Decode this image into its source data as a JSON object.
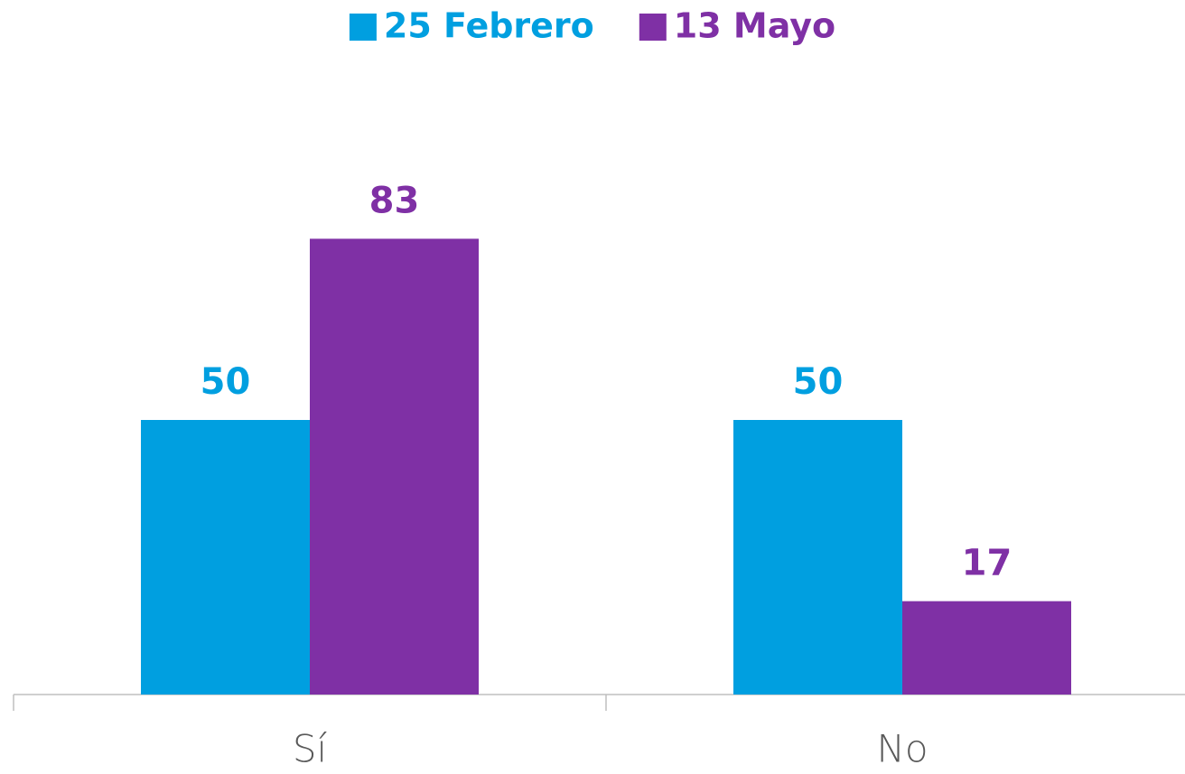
{
  "chart_data": {
    "type": "bar",
    "categories": [
      "Sí",
      "No"
    ],
    "series": [
      {
        "name": "25 Febrero",
        "color": "#009fe0",
        "values": [
          50,
          50
        ]
      },
      {
        "name": "13 Mayo",
        "color": "#7f30a5",
        "values": [
          83,
          17
        ]
      }
    ],
    "ylim": [
      0,
      100
    ],
    "legend": "top"
  }
}
